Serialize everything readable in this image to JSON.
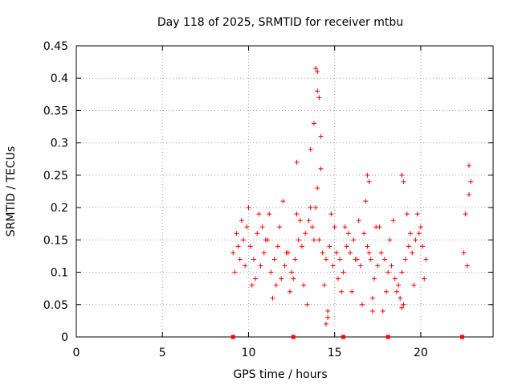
{
  "chart_data": {
    "type": "scatter",
    "title": "Day 118 of 2025, SRMTID for receiver mtbu",
    "xlabel": "GPS time / hours",
    "ylabel": "SRMTID / TECUs",
    "xlim": [
      0,
      24.2
    ],
    "ylim": [
      0,
      0.45
    ],
    "xticks": [
      0,
      5,
      10,
      15,
      20
    ],
    "xtick_labels": [
      "0",
      "5",
      "10",
      "15",
      "20"
    ],
    "yticks": [
      0,
      0.05,
      0.1,
      0.15,
      0.2,
      0.25,
      0.3,
      0.35,
      0.4,
      0.45
    ],
    "ytick_labels": [
      "0",
      "0.05",
      "0.1",
      "0.15",
      "0.2",
      "0.25",
      "0.3",
      "0.35",
      "0.4",
      "0.45"
    ],
    "grid": true,
    "marker": "+",
    "color": "#ff0000",
    "axis_markers_x": [
      9.1,
      12.6,
      15.5,
      18.1,
      22.4
    ],
    "series": [
      {
        "name": "SRMTID",
        "x": [
          9.1,
          9.3,
          9.5,
          9.7,
          9.9,
          10.1,
          10.3,
          10.5,
          10.7,
          10.9,
          11.1,
          11.3,
          11.5,
          11.7,
          11.9,
          12.1,
          12.3,
          12.5,
          12.7,
          12.9,
          13.1,
          13.3,
          13.5,
          13.7,
          13.9,
          14.1,
          14.3,
          14.5,
          14.7,
          14.9,
          15.1,
          15.3,
          15.5,
          15.7,
          15.9,
          16.1,
          16.3,
          16.5,
          16.7,
          16.9,
          17.1,
          17.3,
          17.5,
          17.7,
          17.9,
          18.1,
          18.3,
          18.5,
          18.7,
          18.9,
          19.1,
          19.3,
          19.5,
          19.7,
          19.9,
          20.1,
          20.3,
          22.5,
          22.7,
          9.2,
          9.6,
          10.0,
          10.4,
          10.8,
          11.2,
          11.6,
          12.0,
          12.4,
          12.8,
          13.2,
          13.6,
          14.0,
          14.4,
          14.8,
          15.2,
          15.6,
          16.0,
          16.4,
          16.8,
          17.2,
          17.6,
          18.0,
          18.4,
          18.8,
          19.2,
          19.6,
          20.0,
          22.6,
          22.8,
          9.4,
          9.8,
          10.2,
          10.6,
          11.0,
          11.4,
          11.8,
          12.2,
          12.6,
          13.0,
          13.4,
          13.8,
          14.2,
          14.6,
          15.0,
          15.4,
          15.8,
          16.2,
          16.6,
          17.0,
          17.4,
          17.8,
          18.2,
          18.6,
          19.0,
          19.4,
          19.8,
          20.2,
          13.9,
          14.0,
          14.0,
          14.1,
          13.8,
          14.2,
          12.8,
          16.9,
          17.0,
          18.9,
          19.0,
          22.8,
          22.9,
          14.6,
          14.5,
          17.2,
          18.9,
          13.6
        ],
        "y": [
          0.13,
          0.16,
          0.12,
          0.15,
          0.17,
          0.14,
          0.12,
          0.16,
          0.11,
          0.13,
          0.15,
          0.1,
          0.12,
          0.14,
          0.09,
          0.11,
          0.13,
          0.1,
          0.12,
          0.15,
          0.14,
          0.16,
          0.18,
          0.17,
          0.2,
          0.15,
          0.13,
          0.12,
          0.14,
          0.11,
          0.13,
          0.12,
          0.1,
          0.14,
          0.13,
          0.15,
          0.12,
          0.11,
          0.16,
          0.14,
          0.12,
          0.09,
          0.11,
          0.13,
          0.12,
          0.1,
          0.11,
          0.09,
          0.08,
          0.1,
          0.12,
          0.14,
          0.13,
          0.15,
          0.16,
          0.14,
          0.12,
          0.13,
          0.11,
          0.1,
          0.18,
          0.2,
          0.09,
          0.17,
          0.19,
          0.08,
          0.21,
          0.07,
          0.19,
          0.08,
          0.2,
          0.23,
          0.08,
          0.19,
          0.09,
          0.17,
          0.07,
          0.18,
          0.21,
          0.06,
          0.17,
          0.07,
          0.18,
          0.06,
          0.19,
          0.08,
          0.17,
          0.19,
          0.22,
          0.14,
          0.11,
          0.08,
          0.19,
          0.15,
          0.06,
          0.17,
          0.13,
          0.09,
          0.18,
          0.05,
          0.15,
          0.26,
          0.04,
          0.17,
          0.07,
          0.16,
          0.12,
          0.05,
          0.13,
          0.17,
          0.04,
          0.15,
          0.07,
          0.05,
          0.16,
          0.19,
          0.09,
          0.415,
          0.41,
          0.38,
          0.37,
          0.33,
          0.31,
          0.27,
          0.25,
          0.24,
          0.25,
          0.24,
          0.265,
          0.24,
          0.03,
          0.02,
          0.04,
          0.045,
          0.29
        ]
      }
    ]
  }
}
